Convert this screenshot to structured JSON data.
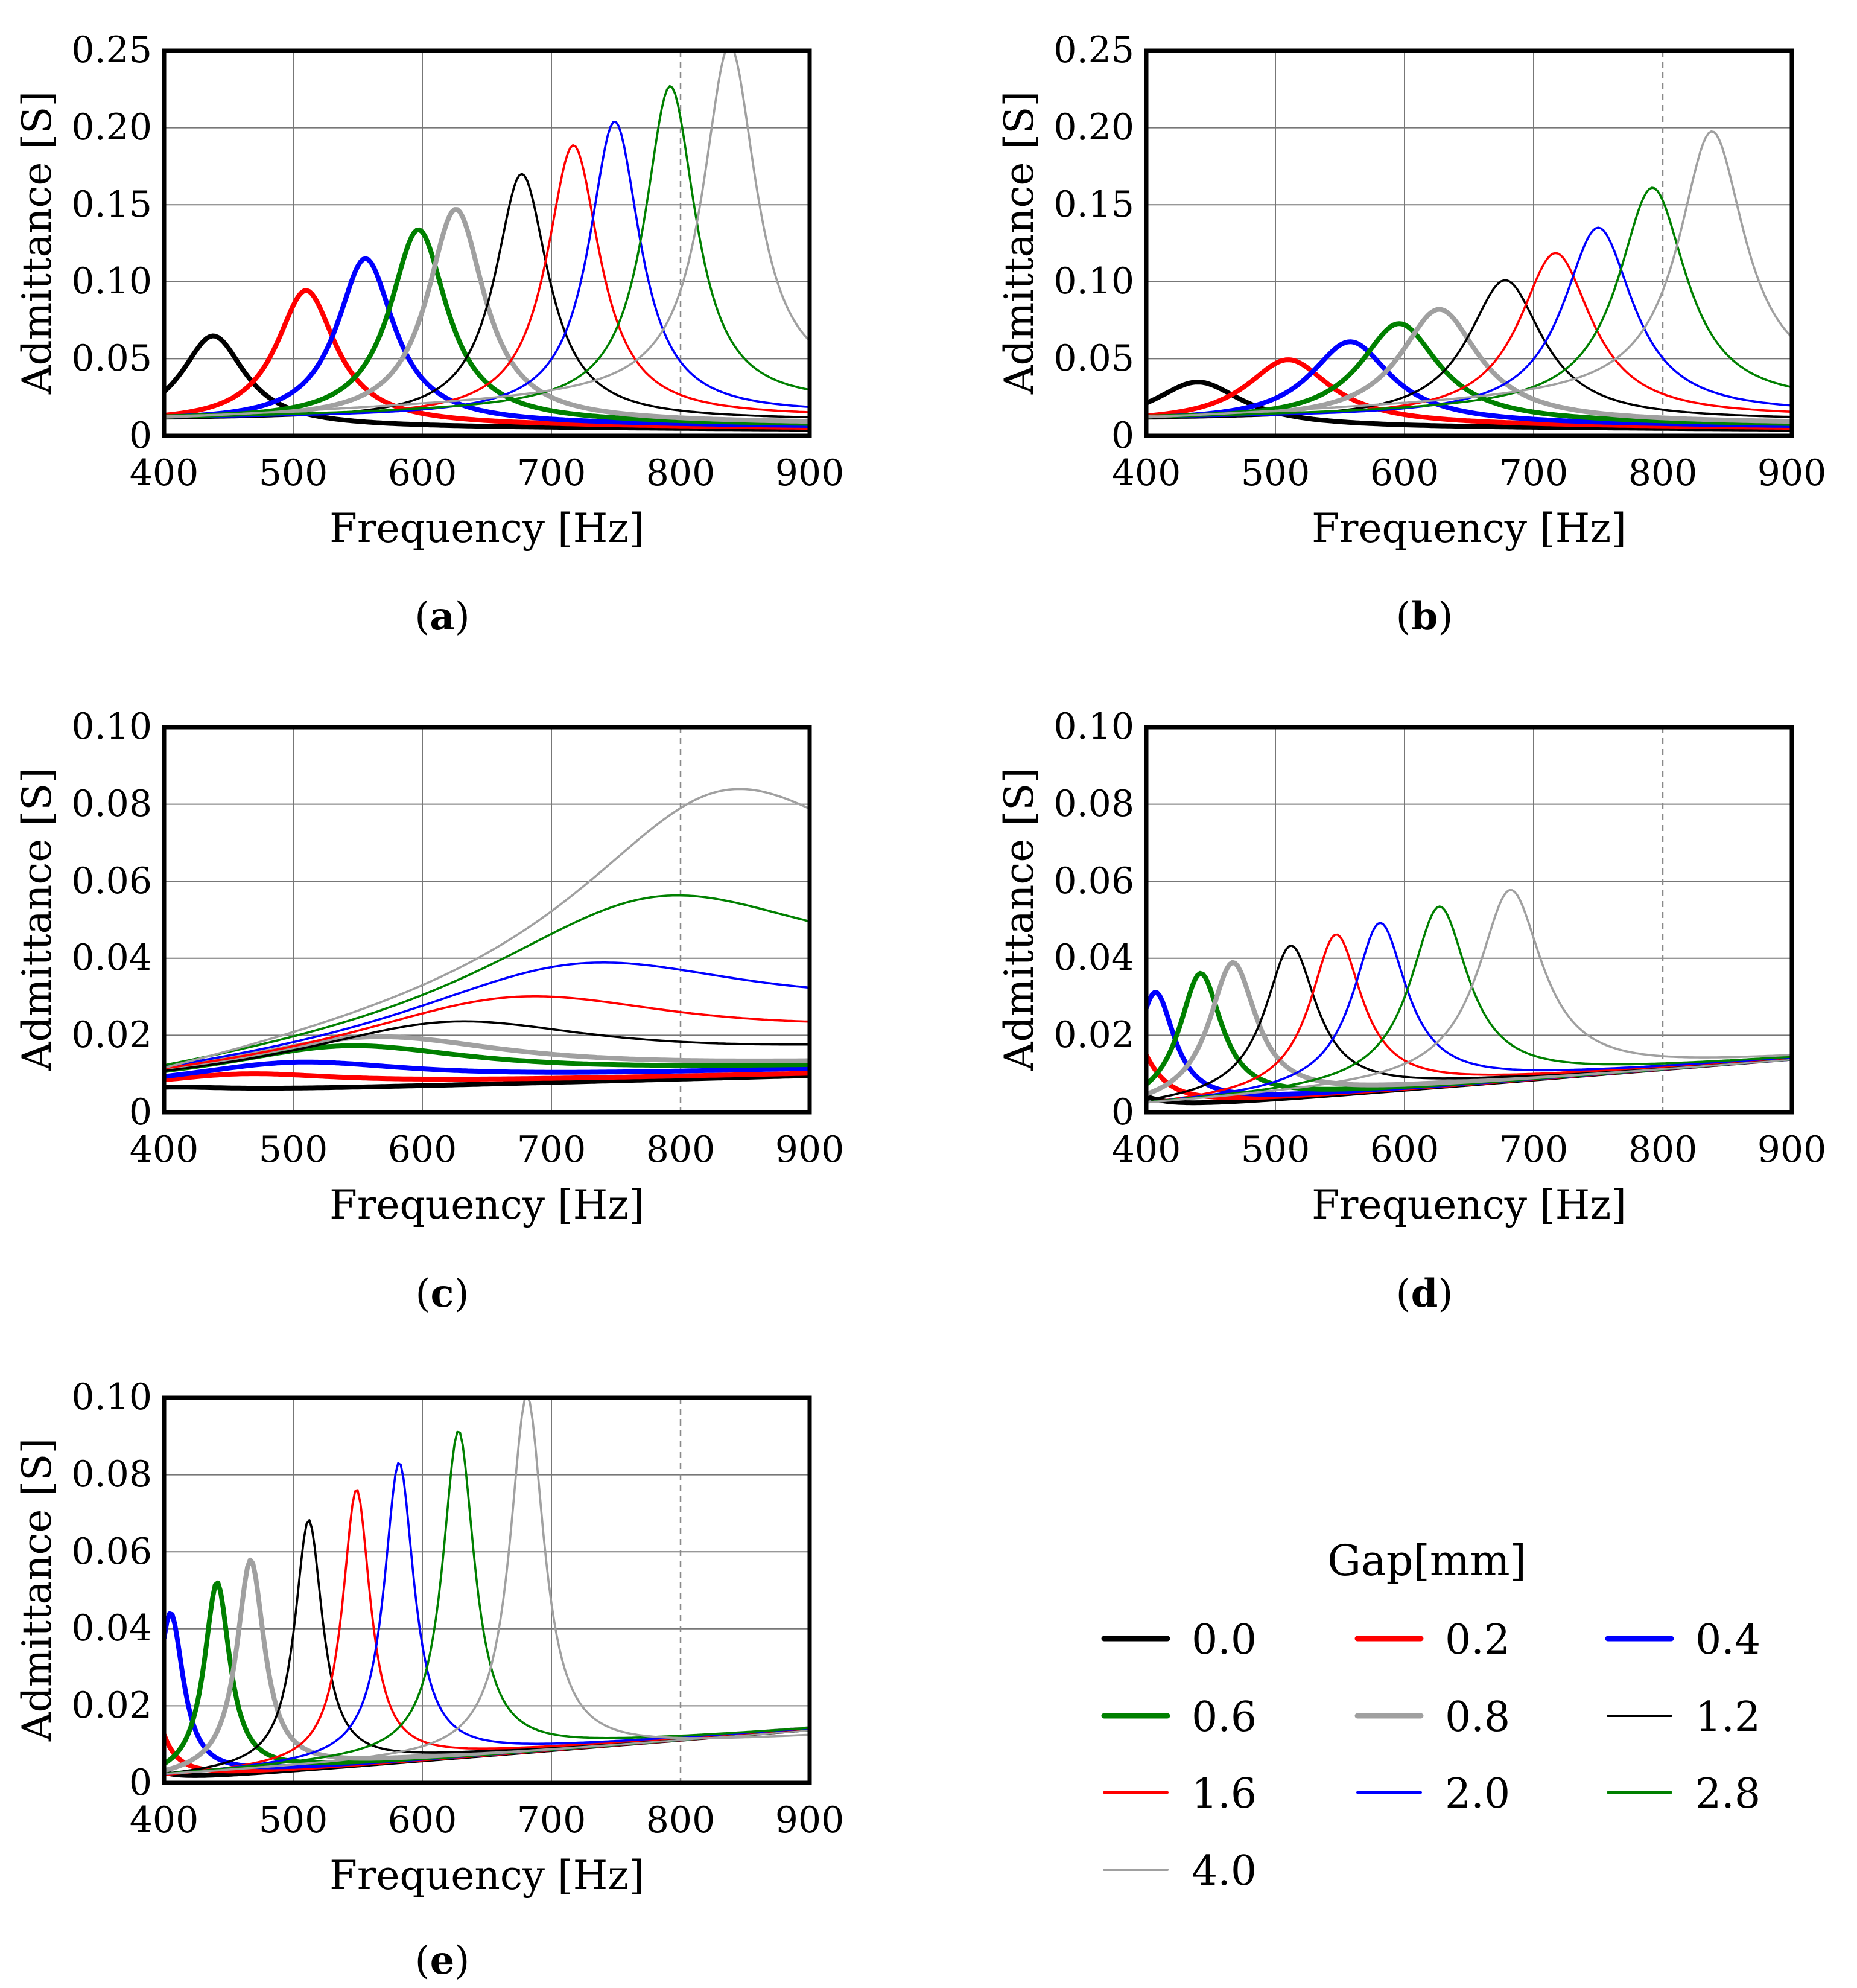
{
  "legend": {
    "title": "Gap[mm]",
    "items": [
      {
        "label": "0.0",
        "color": "#000000",
        "bold": true
      },
      {
        "label": "0.2",
        "color": "#ff0000",
        "bold": true
      },
      {
        "label": "0.4",
        "color": "#0000ff",
        "bold": true
      },
      {
        "label": "0.6",
        "color": "#008000",
        "bold": true
      },
      {
        "label": "0.8",
        "color": "#a0a0a0",
        "bold": true
      },
      {
        "label": "1.2",
        "color": "#000000",
        "bold": false
      },
      {
        "label": "1.6",
        "color": "#ff0000",
        "bold": false
      },
      {
        "label": "2.0",
        "color": "#0000ff",
        "bold": false
      },
      {
        "label": "2.8",
        "color": "#008000",
        "bold": false
      },
      {
        "label": "4.0",
        "color": "#a0a0a0",
        "bold": false
      }
    ]
  },
  "chart_data": [
    {
      "id": "a",
      "caption": "a",
      "type": "line",
      "xlabel": "Frequency [Hz]",
      "ylabel": "Admittance [S]",
      "xlim": [
        400,
        900
      ],
      "ylim": [
        0,
        0.25
      ],
      "xticks": [
        400,
        500,
        600,
        700,
        800,
        900
      ],
      "xtick_labels": [
        "400",
        "500",
        "600",
        "700",
        "800",
        "900"
      ],
      "yticks": [
        0,
        0.05,
        0.1,
        0.15,
        0.2,
        0.25
      ],
      "ytick_labels": [
        "0",
        "0.05",
        "0.10",
        "0.15",
        "0.20",
        "0.25"
      ],
      "ref_line_x": 800,
      "grid": true,
      "series": [
        {
          "name": "0.0",
          "f0": 438,
          "peak": 0.059,
          "hw": 30,
          "base": 0.006,
          "hi": 0.004
        },
        {
          "name": "0.2",
          "f0": 510,
          "peak": 0.087,
          "hw": 28,
          "base": 0.008,
          "hi": 0.005
        },
        {
          "name": "0.4",
          "f0": 556,
          "peak": 0.107,
          "hw": 27,
          "base": 0.009,
          "hi": 0.006
        },
        {
          "name": "0.6",
          "f0": 597,
          "peak": 0.125,
          "hw": 27,
          "base": 0.01,
          "hi": 0.007
        },
        {
          "name": "0.8",
          "f0": 626,
          "peak": 0.138,
          "hw": 27,
          "base": 0.01,
          "hi": 0.008
        },
        {
          "name": "1.2",
          "f0": 677,
          "peak": 0.16,
          "hw": 25,
          "base": 0.01,
          "hi": 0.01
        },
        {
          "name": "1.6",
          "f0": 717,
          "peak": 0.177,
          "hw": 25,
          "base": 0.011,
          "hi": 0.012
        },
        {
          "name": "2.0",
          "f0": 749,
          "peak": 0.191,
          "hw": 24,
          "base": 0.011,
          "hi": 0.014
        },
        {
          "name": "2.8",
          "f0": 792,
          "peak": 0.209,
          "hw": 24,
          "base": 0.011,
          "hi": 0.02
        },
        {
          "name": "4.0",
          "f0": 838,
          "peak": 0.226,
          "hw": 25,
          "base": 0.011,
          "hi": 0.03
        }
      ]
    },
    {
      "id": "b",
      "caption": "b",
      "type": "line",
      "xlabel": "Frequency [Hz]",
      "ylabel": "Admittance [S]",
      "xlim": [
        400,
        900
      ],
      "ylim": [
        0,
        0.25
      ],
      "xticks": [
        400,
        500,
        600,
        700,
        800,
        900
      ],
      "xtick_labels": [
        "400",
        "500",
        "600",
        "700",
        "800",
        "900"
      ],
      "yticks": [
        0,
        0.05,
        0.1,
        0.15,
        0.2,
        0.25
      ],
      "ytick_labels": [
        "0",
        "0.05",
        "0.10",
        "0.15",
        "0.20",
        "0.25"
      ],
      "ref_line_x": 800,
      "grid": true,
      "series": [
        {
          "name": "0.0",
          "f0": 440,
          "peak": 0.029,
          "hw": 42,
          "base": 0.006,
          "hi": 0.004
        },
        {
          "name": "0.2",
          "f0": 510,
          "peak": 0.042,
          "hw": 40,
          "base": 0.008,
          "hi": 0.005
        },
        {
          "name": "0.4",
          "f0": 558,
          "peak": 0.053,
          "hw": 38,
          "base": 0.009,
          "hi": 0.006
        },
        {
          "name": "0.6",
          "f0": 596,
          "peak": 0.064,
          "hw": 37,
          "base": 0.01,
          "hi": 0.007
        },
        {
          "name": "0.8",
          "f0": 627,
          "peak": 0.073,
          "hw": 37,
          "base": 0.01,
          "hi": 0.008
        },
        {
          "name": "1.2",
          "f0": 678,
          "peak": 0.091,
          "hw": 35,
          "base": 0.01,
          "hi": 0.01
        },
        {
          "name": "1.6",
          "f0": 717,
          "peak": 0.107,
          "hw": 34,
          "base": 0.011,
          "hi": 0.012
        },
        {
          "name": "2.0",
          "f0": 750,
          "peak": 0.122,
          "hw": 33,
          "base": 0.011,
          "hi": 0.014
        },
        {
          "name": "2.8",
          "f0": 792,
          "peak": 0.143,
          "hw": 32,
          "base": 0.011,
          "hi": 0.02
        },
        {
          "name": "4.0",
          "f0": 838,
          "peak": 0.17,
          "hw": 31,
          "base": 0.011,
          "hi": 0.03
        }
      ]
    },
    {
      "id": "c",
      "caption": "c",
      "type": "line",
      "xlabel": "Frequency [Hz]",
      "ylabel": "Admittance [S]",
      "xlim": [
        400,
        900
      ],
      "ylim": [
        0,
        0.1
      ],
      "xticks": [
        400,
        500,
        600,
        700,
        800,
        900
      ],
      "xtick_labels": [
        "400",
        "500",
        "600",
        "700",
        "800",
        "900"
      ],
      "yticks": [
        0,
        0.02,
        0.04,
        0.06,
        0.08,
        0.1
      ],
      "ytick_labels": [
        "0",
        "0.02",
        "0.04",
        "0.06",
        "0.08",
        "0.10"
      ],
      "ref_line_x": 800,
      "grid": true,
      "series": [
        {
          "name": "0.0",
          "f0": 400,
          "peak": 0.0015,
          "hw": 60,
          "base": 0.005,
          "hi": 0.0095
        },
        {
          "name": "0.2",
          "f0": 460,
          "peak": 0.0035,
          "hw": 90,
          "base": 0.006,
          "hi": 0.01
        },
        {
          "name": "0.4",
          "f0": 500,
          "peak": 0.006,
          "hw": 110,
          "base": 0.006,
          "hi": 0.011
        },
        {
          "name": "0.6",
          "f0": 540,
          "peak": 0.009,
          "hw": 120,
          "base": 0.007,
          "hi": 0.0115
        },
        {
          "name": "0.8",
          "f0": 560,
          "peak": 0.011,
          "hw": 130,
          "base": 0.007,
          "hi": 0.012
        },
        {
          "name": "1.2",
          "f0": 620,
          "peak": 0.013,
          "hw": 140,
          "base": 0.007,
          "hi": 0.015
        },
        {
          "name": "1.6",
          "f0": 670,
          "peak": 0.017,
          "hw": 160,
          "base": 0.007,
          "hi": 0.018
        },
        {
          "name": "2.0",
          "f0": 720,
          "peak": 0.022,
          "hw": 170,
          "base": 0.007,
          "hi": 0.022
        },
        {
          "name": "2.8",
          "f0": 780,
          "peak": 0.033,
          "hw": 165,
          "base": 0.007,
          "hi": 0.028
        },
        {
          "name": "4.0",
          "f0": 832,
          "peak": 0.048,
          "hw": 140,
          "base": 0.007,
          "hi": 0.04
        }
      ]
    },
    {
      "id": "d",
      "caption": "d",
      "type": "line",
      "xlabel": "Frequency [Hz]",
      "ylabel": "Admittance [S]",
      "xlim": [
        400,
        900
      ],
      "ylim": [
        0,
        0.1
      ],
      "xticks": [
        400,
        500,
        600,
        700,
        800,
        900
      ],
      "xtick_labels": [
        "400",
        "500",
        "600",
        "700",
        "800",
        "900"
      ],
      "yticks": [
        0,
        0.02,
        0.04,
        0.06,
        0.08,
        0.1
      ],
      "ytick_labels": [
        "0",
        "0.02",
        "0.04",
        "0.06",
        "0.08",
        "0.10"
      ],
      "ref_line_x": 800,
      "grid": true,
      "series": [
        {
          "name": "0.0",
          "f0": 370,
          "peak": 0.012,
          "hw": 20,
          "base": 0.0005,
          "hi": 0.014
        },
        {
          "name": "0.2",
          "f0": 385,
          "peak": 0.022,
          "hw": 20,
          "base": 0.0008,
          "hi": 0.014
        },
        {
          "name": "0.4",
          "f0": 407,
          "peak": 0.03,
          "hw": 18,
          "base": 0.001,
          "hi": 0.014
        },
        {
          "name": "0.6",
          "f0": 442,
          "peak": 0.034,
          "hw": 20,
          "base": 0.001,
          "hi": 0.014
        },
        {
          "name": "0.8",
          "f0": 467,
          "peak": 0.036,
          "hw": 22,
          "base": 0.0012,
          "hi": 0.014
        },
        {
          "name": "1.2",
          "f0": 512,
          "peak": 0.039,
          "hw": 24,
          "base": 0.0015,
          "hi": 0.014
        },
        {
          "name": "1.6",
          "f0": 547,
          "peak": 0.041,
          "hw": 24,
          "base": 0.0015,
          "hi": 0.014
        },
        {
          "name": "2.0",
          "f0": 581,
          "peak": 0.043,
          "hw": 25,
          "base": 0.0018,
          "hi": 0.014
        },
        {
          "name": "2.8",
          "f0": 627,
          "peak": 0.046,
          "hw": 27,
          "base": 0.002,
          "hi": 0.014
        },
        {
          "name": "4.0",
          "f0": 682,
          "peak": 0.049,
          "hw": 30,
          "base": 0.002,
          "hi": 0.014
        }
      ]
    },
    {
      "id": "e",
      "caption": "e",
      "type": "line",
      "xlabel": "Frequency [Hz]",
      "ylabel": "Admittance [S]",
      "xlim": [
        400,
        900
      ],
      "ylim": [
        0,
        0.1
      ],
      "xticks": [
        400,
        500,
        600,
        700,
        800,
        900
      ],
      "xtick_labels": [
        "400",
        "500",
        "600",
        "700",
        "800",
        "900"
      ],
      "yticks": [
        0,
        0.02,
        0.04,
        0.06,
        0.08,
        0.1
      ],
      "ytick_labels": [
        "0",
        "0.02",
        "0.04",
        "0.06",
        "0.08",
        "0.10"
      ],
      "ref_line_x": 800,
      "grid": true,
      "series": [
        {
          "name": "0.0",
          "f0": 370,
          "peak": 0.016,
          "hw": 12,
          "base": 0.0005,
          "hi": 0.014
        },
        {
          "name": "0.2",
          "f0": 385,
          "peak": 0.03,
          "hw": 12,
          "base": 0.0008,
          "hi": 0.014
        },
        {
          "name": "0.4",
          "f0": 405,
          "peak": 0.043,
          "hw": 12,
          "base": 0.001,
          "hi": 0.014
        },
        {
          "name": "0.6",
          "f0": 441,
          "peak": 0.05,
          "hw": 12,
          "base": 0.001,
          "hi": 0.014
        },
        {
          "name": "0.8",
          "f0": 467,
          "peak": 0.055,
          "hw": 13,
          "base": 0.0012,
          "hi": 0.014
        },
        {
          "name": "1.2",
          "f0": 512,
          "peak": 0.064,
          "hw": 13,
          "base": 0.0015,
          "hi": 0.014
        },
        {
          "name": "1.6",
          "f0": 549,
          "peak": 0.071,
          "hw": 13,
          "base": 0.0015,
          "hi": 0.014
        },
        {
          "name": "2.0",
          "f0": 582,
          "peak": 0.077,
          "hw": 14,
          "base": 0.0018,
          "hi": 0.014
        },
        {
          "name": "2.8",
          "f0": 628,
          "peak": 0.084,
          "hw": 15,
          "base": 0.002,
          "hi": 0.014
        },
        {
          "name": "4.0",
          "f0": 681,
          "peak": 0.093,
          "hw": 16,
          "base": 0.002,
          "hi": 0.012
        }
      ]
    }
  ]
}
